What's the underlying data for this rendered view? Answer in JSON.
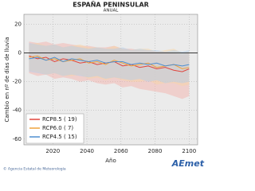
{
  "chart_data": {
    "type": "line",
    "title": "ESPAÑA PENINSULAR",
    "subtitle": "ANUAL",
    "y_label": "Cambio en nº de días de lluvia",
    "x_label": "Año",
    "x": [
      2006,
      2011,
      2016,
      2021,
      2026,
      2031,
      2036,
      2041,
      2046,
      2051,
      2056,
      2061,
      2066,
      2071,
      2076,
      2081,
      2086,
      2091,
      2096,
      2100
    ],
    "xlim": [
      2003,
      2105
    ],
    "xticks": [
      2020,
      2040,
      2060,
      2080,
      2100
    ],
    "ylim": [
      -64,
      27
    ],
    "yticks": [
      20,
      0,
      -20,
      -40,
      -60
    ],
    "grid": true,
    "zero_line": true,
    "series": [
      {
        "name": "RCP8.5",
        "models_label": "( 19)",
        "color": "#e0443c",
        "band_color": "#f4b3ad",
        "values": [
          -2,
          -4,
          -3,
          -6,
          -4,
          -5,
          -7,
          -6,
          -8,
          -7,
          -6,
          -9,
          -8,
          -10,
          -9,
          -11,
          -10,
          -12,
          -13,
          -11
        ],
        "lower": [
          -14,
          -16,
          -15,
          -18,
          -17,
          -18,
          -20,
          -19,
          -21,
          -22,
          -21,
          -24,
          -23,
          -25,
          -26,
          -27,
          -28,
          -30,
          -32,
          -30
        ],
        "upper": [
          8,
          7,
          8,
          6,
          7,
          6,
          5,
          5,
          4,
          4,
          5,
          3,
          3,
          2,
          2,
          1,
          1,
          0,
          -1,
          0
        ]
      },
      {
        "name": "RCP6.0",
        "models_label": "( 7)",
        "color": "#f0a23c",
        "band_color": "#f7d6a6",
        "values": [
          -3,
          -2,
          -5,
          -4,
          -6,
          -5,
          -4,
          -7,
          -6,
          -8,
          -5,
          -7,
          -9,
          -8,
          -7,
          -10,
          -9,
          -8,
          -11,
          -10
        ],
        "lower": [
          -12,
          -13,
          -15,
          -14,
          -16,
          -16,
          -15,
          -18,
          -17,
          -19,
          -17,
          -19,
          -20,
          -20,
          -19,
          -22,
          -21,
          -21,
          -23,
          -22
        ],
        "upper": [
          6,
          7,
          5,
          6,
          4,
          5,
          6,
          4,
          4,
          3,
          5,
          3,
          2,
          3,
          3,
          1,
          2,
          3,
          0,
          1
        ]
      },
      {
        "name": "RCP4.5",
        "models_label": "( 15)",
        "color": "#4f8fd0",
        "band_color": "#b3cde9",
        "values": [
          -4,
          -3,
          -5,
          -3,
          -6,
          -4,
          -5,
          -6,
          -5,
          -7,
          -6,
          -6,
          -8,
          -7,
          -8,
          -7,
          -9,
          -8,
          -9,
          -8
        ],
        "lower": [
          -13,
          -14,
          -15,
          -14,
          -16,
          -15,
          -16,
          -17,
          -16,
          -18,
          -17,
          -18,
          -19,
          -18,
          -20,
          -19,
          -21,
          -20,
          -21,
          -20
        ],
        "upper": [
          7,
          6,
          5,
          6,
          4,
          5,
          4,
          3,
          4,
          3,
          3,
          4,
          2,
          3,
          2,
          2,
          1,
          2,
          1,
          2
        ]
      }
    ],
    "footer": "© Agencia Estatal de Meteorología",
    "logo": "AEmet"
  }
}
